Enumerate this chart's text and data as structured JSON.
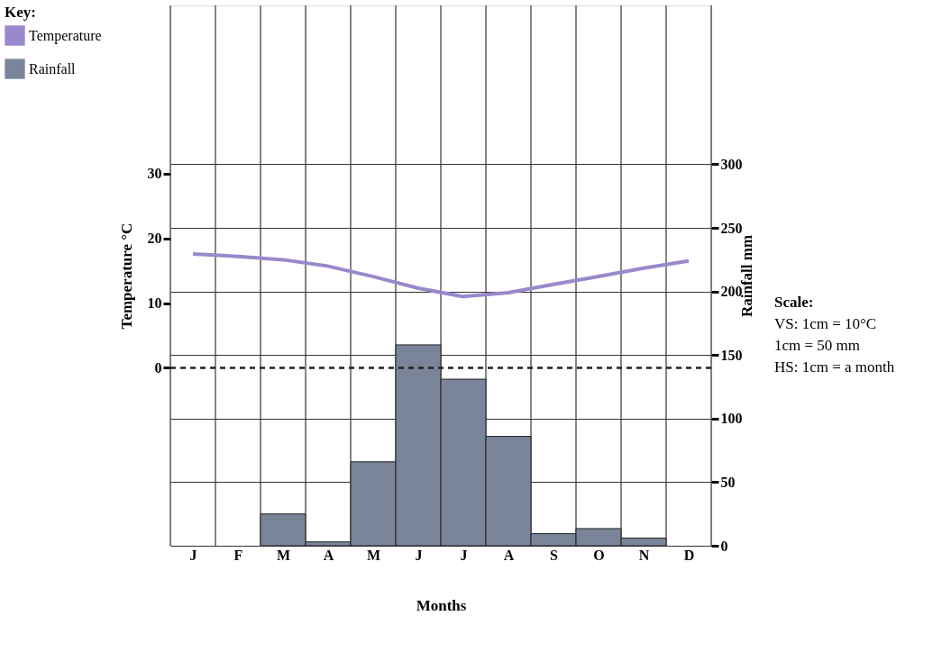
{
  "chart_data": {
    "type": "bar",
    "xlabel": "Months",
    "ylabel": "Temperature °C",
    "y2label": "Rainfall mm",
    "legend_title": "Key:",
    "categories": [
      "J",
      "F",
      "M",
      "A",
      "M",
      "J",
      "J",
      "A",
      "S",
      "O",
      "N",
      "D"
    ],
    "series": [
      {
        "name": "Temperature",
        "type": "line",
        "axis": "y",
        "color": "#9a88cc",
        "values": [
          17.6,
          17.2,
          16.7,
          15.7,
          14.1,
          12.3,
          11,
          11.6,
          12.9,
          14.1,
          15.4,
          16.5
        ]
      },
      {
        "name": "Rainfall",
        "axis": "y2",
        "color": "#7b8599",
        "values": [
          0,
          0,
          25,
          3,
          66,
          158,
          131,
          86,
          9.5,
          13.5,
          6,
          0
        ]
      }
    ],
    "ylim": [
      -27.5,
      56
    ],
    "yticks": [
      0,
      10,
      20,
      30
    ],
    "y2lim": [
      0,
      425
    ],
    "y2ticks": [
      0,
      50,
      100,
      150,
      200,
      250,
      300
    ],
    "ref_lines": [
      {
        "axis": "y",
        "value": 0,
        "line_style": "dashed",
        "color": "#222222"
      }
    ],
    "grid": true,
    "legend": "left",
    "annotations": [
      "Scale:",
      "VS: 1cm = 10°C",
      "1cm = 50 mm",
      "HS: 1cm = a month"
    ]
  }
}
